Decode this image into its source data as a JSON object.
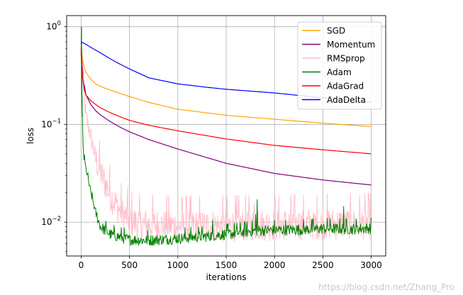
{
  "chart_data": {
    "type": "line",
    "title": "",
    "xlabel": "iterations",
    "ylabel": "loss",
    "yscale": "log",
    "xlim": [
      -150,
      3150
    ],
    "ylim": [
      0.0045,
      1.3
    ],
    "x_ticks": [
      0,
      500,
      1000,
      1500,
      2000,
      2500,
      3000
    ],
    "y_ticks": [
      {
        "value": 0.01,
        "base": "10",
        "exp": "−2"
      },
      {
        "value": 0.1,
        "base": "10",
        "exp": "−1"
      },
      {
        "value": 1,
        "base": "10",
        "exp": "0"
      }
    ],
    "grid": true,
    "legend_position": "upper-right",
    "series": [
      {
        "name": "SGD",
        "color": "#FFA500",
        "noise": 0,
        "points": [
          [
            0,
            0.7
          ],
          [
            10,
            0.5
          ],
          [
            25,
            0.4
          ],
          [
            50,
            0.34
          ],
          [
            100,
            0.29
          ],
          [
            150,
            0.26
          ],
          [
            200,
            0.245
          ],
          [
            300,
            0.225
          ],
          [
            400,
            0.208
          ],
          [
            500,
            0.193
          ],
          [
            700,
            0.168
          ],
          [
            1000,
            0.143
          ],
          [
            1500,
            0.124
          ],
          [
            2000,
            0.113
          ],
          [
            2500,
            0.103
          ],
          [
            3000,
            0.095
          ]
        ]
      },
      {
        "name": "Momentum",
        "color": "#800080",
        "noise": 0,
        "points": [
          [
            0,
            0.68
          ],
          [
            10,
            0.42
          ],
          [
            25,
            0.28
          ],
          [
            50,
            0.2
          ],
          [
            100,
            0.16
          ],
          [
            150,
            0.138
          ],
          [
            200,
            0.125
          ],
          [
            300,
            0.107
          ],
          [
            400,
            0.094
          ],
          [
            500,
            0.084
          ],
          [
            700,
            0.07
          ],
          [
            1000,
            0.056
          ],
          [
            1500,
            0.04
          ],
          [
            2000,
            0.0315
          ],
          [
            2500,
            0.027
          ],
          [
            3000,
            0.024
          ]
        ]
      },
      {
        "name": "RMSprop",
        "color": "#FFC0CB",
        "noise": 0.38,
        "points": [
          [
            0,
            0.72
          ],
          [
            10,
            0.38
          ],
          [
            25,
            0.22
          ],
          [
            50,
            0.12
          ],
          [
            100,
            0.075
          ],
          [
            150,
            0.045
          ],
          [
            200,
            0.032
          ],
          [
            250,
            0.025
          ],
          [
            300,
            0.019
          ],
          [
            350,
            0.016
          ],
          [
            400,
            0.013
          ],
          [
            500,
            0.0105
          ],
          [
            600,
            0.0095
          ],
          [
            1000,
            0.0092
          ],
          [
            1500,
            0.0092
          ],
          [
            2000,
            0.0094
          ],
          [
            2500,
            0.0096
          ],
          [
            3000,
            0.0097
          ]
        ]
      },
      {
        "name": "Adam",
        "color": "#008000",
        "noise": 0.13,
        "points": [
          [
            0,
            0.5
          ],
          [
            3,
            1.0
          ],
          [
            6,
            0.25
          ],
          [
            12,
            0.12
          ],
          [
            20,
            0.06
          ],
          [
            30,
            0.045
          ],
          [
            50,
            0.035
          ],
          [
            80,
            0.025
          ],
          [
            100,
            0.02
          ],
          [
            150,
            0.0125
          ],
          [
            200,
            0.009
          ],
          [
            300,
            0.0075
          ],
          [
            500,
            0.0066
          ],
          [
            700,
            0.0065
          ],
          [
            1000,
            0.0068
          ],
          [
            1300,
            0.0072
          ],
          [
            1500,
            0.0075
          ],
          [
            1800,
            0.0082
          ],
          [
            2000,
            0.0083
          ],
          [
            2300,
            0.0084
          ],
          [
            2500,
            0.0086
          ],
          [
            2800,
            0.0085
          ],
          [
            3000,
            0.0087
          ]
        ]
      },
      {
        "name": "AdaGrad",
        "color": "#FF0000",
        "noise": 0,
        "points": [
          [
            0,
            0.6
          ],
          [
            10,
            0.35
          ],
          [
            25,
            0.24
          ],
          [
            50,
            0.2
          ],
          [
            100,
            0.175
          ],
          [
            150,
            0.16
          ],
          [
            200,
            0.148
          ],
          [
            300,
            0.132
          ],
          [
            400,
            0.12
          ],
          [
            500,
            0.11
          ],
          [
            700,
            0.098
          ],
          [
            1000,
            0.086
          ],
          [
            1500,
            0.071
          ],
          [
            2000,
            0.061
          ],
          [
            2500,
            0.055
          ],
          [
            3000,
            0.05
          ]
        ]
      },
      {
        "name": "AdaDelta",
        "color": "#0000FF",
        "noise": 0,
        "points": [
          [
            0,
            0.7
          ],
          [
            50,
            0.66
          ],
          [
            100,
            0.615
          ],
          [
            200,
            0.54
          ],
          [
            300,
            0.47
          ],
          [
            400,
            0.415
          ],
          [
            500,
            0.37
          ],
          [
            700,
            0.3
          ],
          [
            1000,
            0.26
          ],
          [
            1300,
            0.24
          ],
          [
            1500,
            0.229
          ],
          [
            2000,
            0.21
          ],
          [
            2500,
            0.187
          ],
          [
            3000,
            0.168
          ]
        ]
      }
    ],
    "spikes": [
      {
        "series": "Adam",
        "x": 1820,
        "y": 0.017
      },
      {
        "series": "Adam",
        "x": 2715,
        "y": 0.0145
      },
      {
        "series": "Adam",
        "x": 1805,
        "y": 0.012
      },
      {
        "series": "Adam",
        "x": 1360,
        "y": 0.0105
      },
      {
        "series": "RMSprop",
        "x": 1790,
        "y": 0.0155
      },
      {
        "series": "RMSprop",
        "x": 1830,
        "y": 0.013
      },
      {
        "series": "RMSprop",
        "x": 2730,
        "y": 0.012
      },
      {
        "series": "RMSprop",
        "x": 2400,
        "y": 0.0125
      }
    ]
  },
  "watermark": "https://blog.csdn.net/Zhang_Pro"
}
